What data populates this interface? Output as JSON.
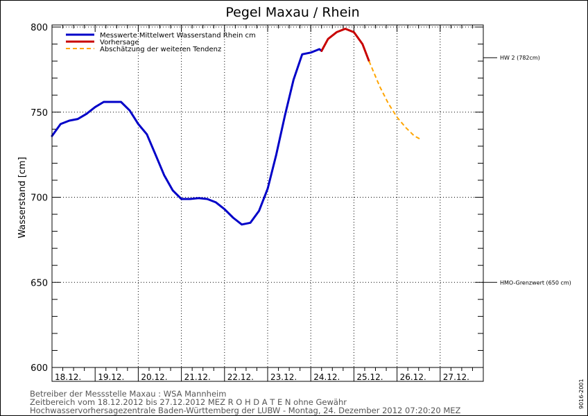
{
  "chart_data": {
    "type": "line",
    "title": "Pegel Maxau / Rhein",
    "ylabel": "Wasserstand [cm]",
    "xlabel": "",
    "ylim": [
      600,
      800
    ],
    "yticks": [
      600,
      650,
      700,
      750,
      800
    ],
    "x_unit": "days since 18.12. 00:00",
    "xlim": [
      0,
      10
    ],
    "x_tick_labels": [
      "18.12.",
      "19.12.",
      "20.12.",
      "21.12.",
      "22.12.",
      "23.12.",
      "24.12.",
      "25.12.",
      "26.12.",
      "27.12."
    ],
    "grid": true,
    "legend_position": "top-left",
    "series": [
      {
        "name": "Messwerte Mittelwert Wasserstand Rhein cm",
        "color": "#0000c8",
        "style": "solid",
        "x": [
          0,
          0.2,
          0.4,
          0.6,
          0.8,
          1.0,
          1.2,
          1.4,
          1.6,
          1.8,
          1.9,
          2.0,
          2.2,
          2.4,
          2.6,
          2.8,
          3.0,
          3.2,
          3.4,
          3.6,
          3.8,
          4.0,
          4.2,
          4.4,
          4.6,
          4.8,
          5.0,
          5.2,
          5.4,
          5.6,
          5.8,
          6.0,
          6.1,
          6.2,
          6.25
        ],
        "y": [
          736,
          743,
          745,
          746,
          749,
          753,
          756,
          756,
          756,
          751,
          747,
          743,
          737,
          725,
          713,
          704,
          699,
          699,
          699.5,
          699,
          697,
          693,
          688,
          684,
          685,
          692,
          705,
          725,
          748,
          769,
          784,
          785,
          786,
          787,
          786
        ]
      },
      {
        "name": "Vorhersage",
        "color": "#c80000",
        "style": "solid",
        "x": [
          6.25,
          6.4,
          6.6,
          6.8,
          7.0,
          7.2,
          7.35
        ],
        "y": [
          786,
          793,
          797,
          799,
          797,
          790,
          780
        ]
      },
      {
        "name": "Abschätzung der weiteren Tendenz",
        "color": "#ffa500",
        "style": "dashed",
        "x": [
          7.35,
          7.6,
          7.8,
          8.0,
          8.2,
          8.4,
          8.55
        ],
        "y": [
          780,
          765,
          755,
          747,
          741,
          736,
          734
        ]
      }
    ],
    "reference_lines": [
      {
        "value": 782,
        "label": "HW 2 (782cm)"
      },
      {
        "value": 650,
        "label": "HMO-Grenzwert (650 cm)"
      }
    ]
  },
  "footer": {
    "line1": "Betreiber der Messstelle Maxau : WSA Mannheim",
    "line2": "Zeitbereich vom 18.12.2012 bis 27.12.2012    MEZ     R O H D A T E N ohne Gewähr",
    "line3": "Hochwasservorhersagezentrale Baden-Württemberg der LUBW - Montag, 24. Dezember 2012 07:20:20 MEZ"
  },
  "version_code": "9016-2001"
}
